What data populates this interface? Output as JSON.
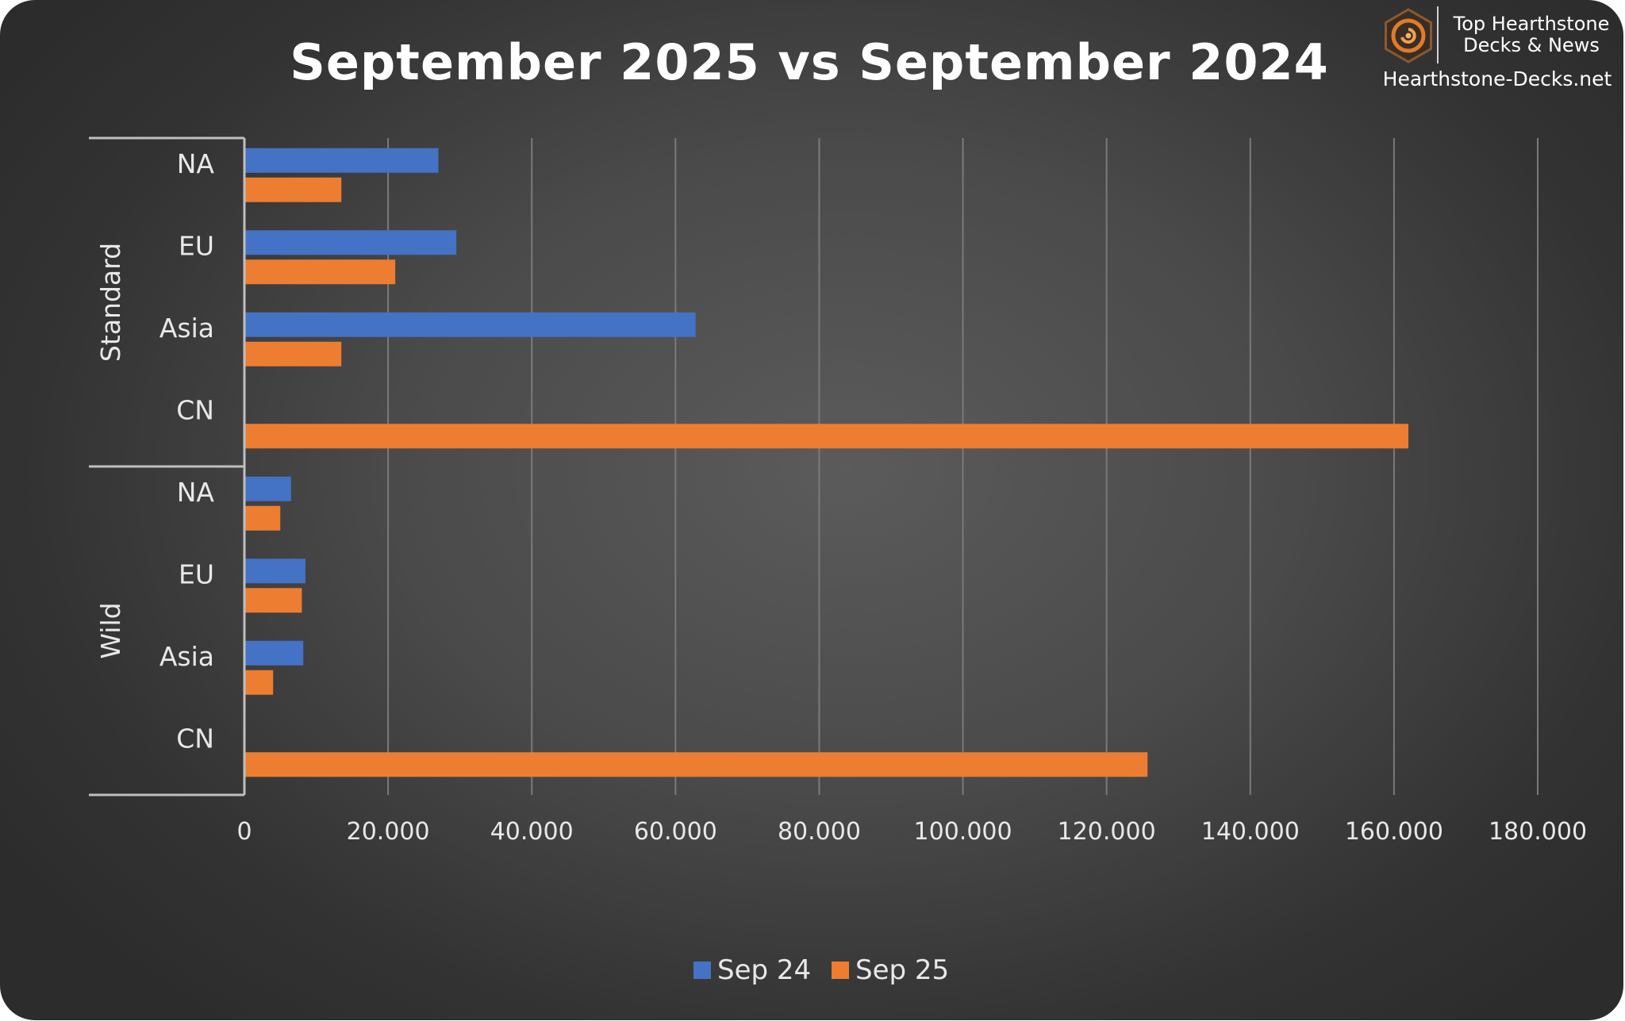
{
  "brand": {
    "line1": "Top Hearthstone",
    "line2": "Decks & News",
    "url": "Hearthstone-Decks.net"
  },
  "colors": {
    "sep24": "#4472c4",
    "sep25": "#ed7d31",
    "grid": "#7a7a7a",
    "axis": "#bfbfbf",
    "text": "#e8e8e8"
  },
  "chart_data": {
    "type": "bar",
    "orientation": "horizontal",
    "title": "September 2025 vs September 2024",
    "groups": [
      {
        "label": "Standard",
        "categories": [
          "NA",
          "EU",
          "Asia",
          "CN"
        ]
      },
      {
        "label": "Wild",
        "categories": [
          "NA",
          "EU",
          "Asia",
          "CN"
        ]
      }
    ],
    "series": [
      {
        "name": "Sep 24",
        "values": [
          27000,
          29500,
          62800,
          0,
          6500,
          8500,
          8200,
          0
        ]
      },
      {
        "name": "Sep 25",
        "values": [
          13500,
          21000,
          13500,
          162000,
          5000,
          8000,
          4000,
          125700
        ]
      }
    ],
    "xlim": [
      0,
      180000
    ],
    "xticks": [
      0,
      20000,
      40000,
      60000,
      80000,
      100000,
      120000,
      140000,
      160000,
      180000
    ],
    "xtick_labels": [
      "0",
      "20.000",
      "40.000",
      "60.000",
      "80.000",
      "100.000",
      "120.000",
      "140.000",
      "160.000",
      "180.000"
    ],
    "grid": true,
    "legend_position": "bottom"
  }
}
